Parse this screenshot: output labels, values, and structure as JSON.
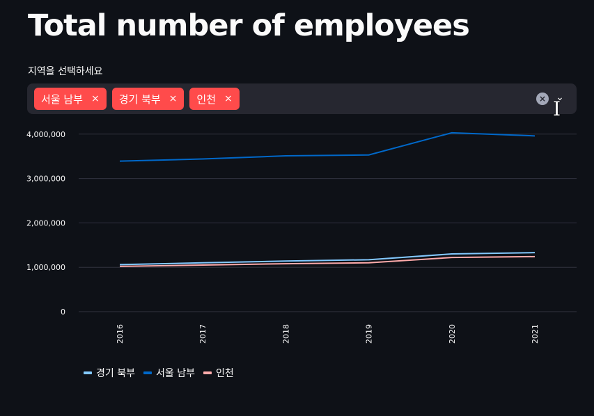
{
  "page": {
    "title": "Total number of employees"
  },
  "select": {
    "label": "지역을 선택하세요",
    "chips": [
      {
        "label": "서울 남부",
        "remove": "×"
      },
      {
        "label": "경기 북부",
        "remove": "×"
      },
      {
        "label": "인천",
        "remove": "×"
      }
    ],
    "clear_glyph": "×",
    "dropdown_glyph": "⌄"
  },
  "colors": {
    "background": "#0e1117",
    "chip": "#ff4b4b",
    "grid": "#31333f",
    "seoul_south": "#0068c9",
    "gyeonggi_north": "#83c9ff",
    "incheon": "#ffabab"
  },
  "chart_data": {
    "type": "line",
    "x": [
      "2016",
      "2017",
      "2018",
      "2019",
      "2020",
      "2021"
    ],
    "y_ticks": [
      {
        "value": 0,
        "label": "0"
      },
      {
        "value": 1000000,
        "label": "1,000,000"
      },
      {
        "value": 2000000,
        "label": "2,000,000"
      },
      {
        "value": 3000000,
        "label": "3,000,000"
      },
      {
        "value": 4000000,
        "label": "4,000,000"
      }
    ],
    "ylim": [
      0,
      4200000
    ],
    "grid": true,
    "legend_position": "bottom-left",
    "series": [
      {
        "name": "경기 북부",
        "color": "#83c9ff",
        "values": [
          1060000,
          1100000,
          1140000,
          1170000,
          1300000,
          1330000
        ]
      },
      {
        "name": "서울 남부",
        "color": "#0068c9",
        "values": [
          3390000,
          3440000,
          3510000,
          3530000,
          4030000,
          3960000
        ]
      },
      {
        "name": "인천",
        "color": "#ffabab",
        "values": [
          1020000,
          1050000,
          1080000,
          1100000,
          1220000,
          1240000
        ]
      }
    ]
  }
}
